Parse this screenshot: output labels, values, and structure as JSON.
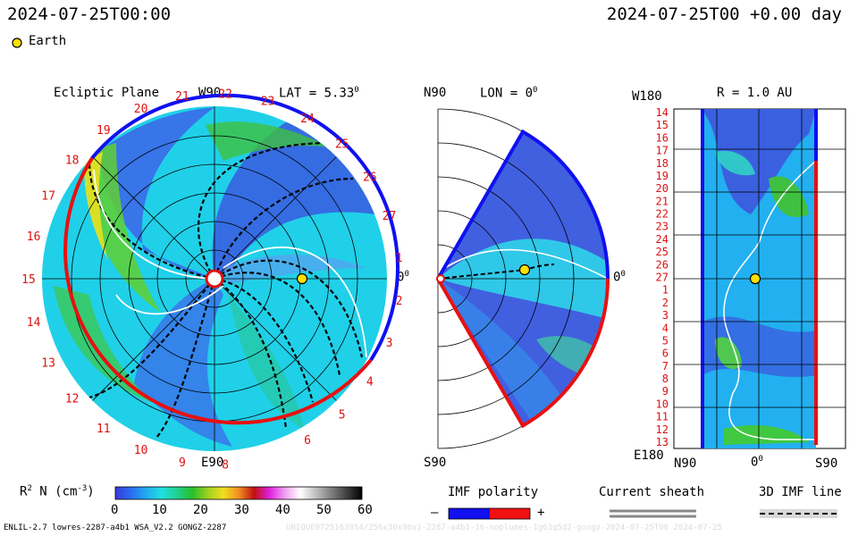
{
  "header": {
    "date_left": "2024-07-25T00:00",
    "date_right": "2024-07-25T00 +0.00 day",
    "earth_label": "Earth"
  },
  "ecliptic": {
    "title": "Ecliptic Plane",
    "top_label": "W90",
    "bottom_label": "E90",
    "right_label": "0",
    "lat_label": "LAT = 5.33",
    "lat_deg": "0",
    "rot_numbers": [
      "6",
      "5",
      "4",
      "3",
      "2",
      "1",
      "27",
      "26",
      "25",
      "24",
      "23",
      "22",
      "21",
      "20",
      "19",
      "18",
      "17",
      "16",
      "15",
      "14",
      "13",
      "12",
      "11",
      "10",
      "9",
      "8"
    ]
  },
  "meridional": {
    "top_label": "N90",
    "bottom_label": "S90",
    "right_label": "0",
    "lon_label": "LON = 0"
  },
  "radial": {
    "title": "R = 1.0 AU",
    "top_label": "W180",
    "bottom_label": "E180",
    "x_labels": [
      "N90",
      "0",
      "S90"
    ],
    "rows": [
      "14",
      "15",
      "16",
      "17",
      "18",
      "19",
      "20",
      "21",
      "22",
      "23",
      "24",
      "25",
      "26",
      "27",
      "1",
      "2",
      "3",
      "4",
      "5",
      "6",
      "7",
      "8",
      "9",
      "10",
      "11",
      "12",
      "13"
    ]
  },
  "colorbar": {
    "label": "R",
    "label_sup": "2",
    "label_tail": " N (cm",
    "label_exp": "-3",
    "label_close": ")",
    "ticks": [
      "0",
      "10",
      "20",
      "30",
      "40",
      "50",
      "60"
    ],
    "colors": [
      "#3a3ad8",
      "#2a6cf0",
      "#22aaf0",
      "#20e0e0",
      "#20d090",
      "#28c028",
      "#a0d020",
      "#f0e020",
      "#f09020",
      "#c01010",
      "#e020e0",
      "#f0a0f0",
      "#ffffff",
      "#c0c0c0",
      "#808080",
      "#404040",
      "#000000"
    ]
  },
  "imf_polarity": {
    "title": "IMF polarity",
    "minus": "–",
    "plus": "+",
    "neg_color": "#1010f0",
    "pos_color": "#f01010"
  },
  "current_sheath": {
    "title": "Current sheath"
  },
  "imf_line": {
    "title": "3D IMF line"
  },
  "footer": {
    "left": "ENLIL-2.7 lowres-2287-a4b1 WSA_V2.2 GONGZ-2287",
    "right": "UNIQUE0725163854/256x30x90x1-2287-a4b1-16-noplumes-Ig63q5d2-gongz-2024-07-25T00    2024-07-25"
  }
}
